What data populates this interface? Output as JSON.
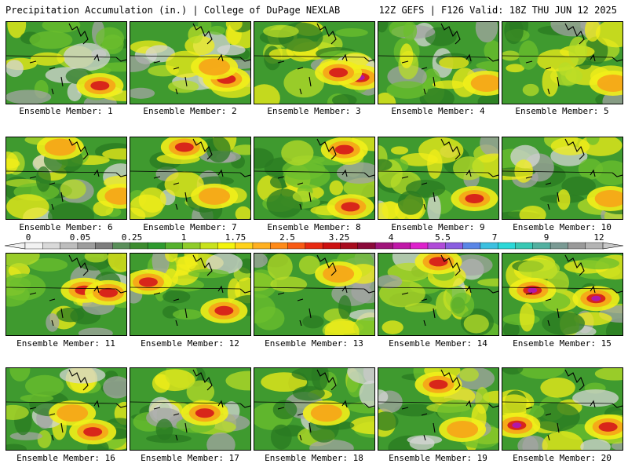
{
  "header": {
    "left": "Precipitation Accumulation (in.) | College of DuPage NEXLAB",
    "right": "12Z GEFS | F126 Valid: 18Z THU JUN 12 2025"
  },
  "label_prefix": "Ensemble Member:",
  "members": [
    1,
    2,
    3,
    4,
    5,
    6,
    7,
    8,
    9,
    10,
    11,
    12,
    13,
    14,
    15,
    16,
    17,
    18,
    19,
    20
  ],
  "colorbar": {
    "labels": [
      "0",
      "0.05",
      "0.25",
      "1",
      "1.75",
      "2.5",
      "3.25",
      "4",
      "5.5",
      "7",
      "9",
      "12"
    ],
    "colors": [
      "#f2f2f2",
      "#d9d9d9",
      "#bdbdbd",
      "#9d9d9d",
      "#7d7d7d",
      "#5a8f5a",
      "#3c8c2e",
      "#2e9a2e",
      "#55b12d",
      "#8fcc2a",
      "#c8e21c",
      "#f3f30c",
      "#ffd21a",
      "#ffb020",
      "#ff8a18",
      "#f85a14",
      "#e82a12",
      "#cc1010",
      "#a80c1e",
      "#8a0a3a",
      "#a0147a",
      "#c018a8",
      "#dd22cc",
      "#b04bd8",
      "#8a5ee0",
      "#5a86e6",
      "#3cc0e0",
      "#2bd8d8",
      "#38c8b4",
      "#53b0a0",
      "#7a9a94",
      "#9a9a9a",
      "#b4b4b4"
    ],
    "arrow_color": "#f0f0f0"
  },
  "map": {
    "land_base": "#3f9a2f",
    "dark_green": "#2a7a22",
    "light_green": "#6cbf2e",
    "yellow_green": "#b8dc28",
    "yellow": "#f2ee1a",
    "orange": "#f6a818",
    "red": "#d8261a",
    "magenta": "#b018a8",
    "gray_light": "#d6d6d6",
    "gray_mid": "#a4a4a4",
    "border_line": "#000000"
  }
}
